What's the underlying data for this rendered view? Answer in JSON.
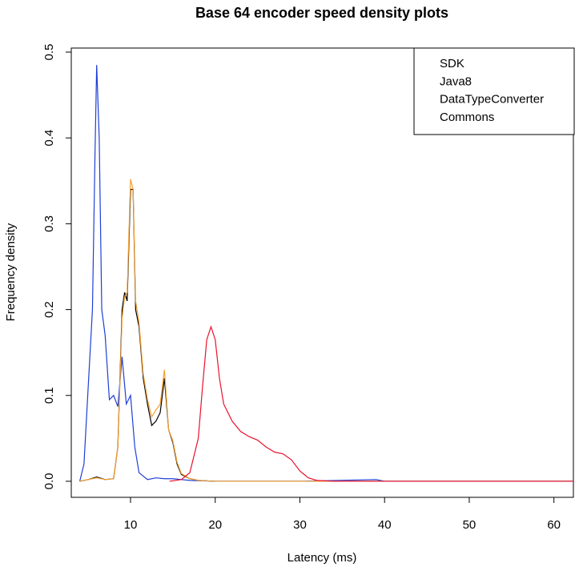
{
  "chart_data": {
    "type": "line",
    "title": "Base 64 encoder speed density plots",
    "xlabel": "Latency (ms)",
    "ylabel": "Frequency density",
    "xlim": [
      3,
      62.3
    ],
    "ylim": [
      -0.0187,
      0.5047
    ],
    "xticks": [
      10,
      20,
      30,
      40,
      50,
      60
    ],
    "yticks": [
      {
        "value": 0,
        "label": "0.0"
      },
      0.1,
      0.2,
      0.3,
      0.4,
      0.5
    ],
    "legend": "topright",
    "series": [
      {
        "name": "SDK",
        "color": "#000000",
        "x": [
          4,
          5,
          6,
          7,
          8,
          8.5,
          9,
          9.3,
          9.6,
          10,
          10.3,
          10.6,
          11,
          11.5,
          12,
          12.5,
          13,
          13.5,
          14,
          14.5,
          15,
          15.5,
          16,
          17,
          18,
          20,
          62.3
        ],
        "values": [
          0,
          0.002,
          0.005,
          0.002,
          0.003,
          0.04,
          0.2,
          0.22,
          0.21,
          0.34,
          0.34,
          0.2,
          0.18,
          0.12,
          0.09,
          0.065,
          0.07,
          0.08,
          0.12,
          0.06,
          0.045,
          0.02,
          0.008,
          0.003,
          0.001,
          0,
          0
        ]
      },
      {
        "name": "Java8",
        "color": "#1f3fd6",
        "x": [
          4,
          4.5,
          5,
          5.5,
          5.8,
          6,
          6.3,
          6.6,
          7,
          7.5,
          8,
          8.5,
          9,
          9.5,
          10,
          10.5,
          11,
          12,
          13,
          14,
          15,
          16,
          17,
          20,
          30,
          39,
          40,
          62.3
        ],
        "values": [
          0,
          0.02,
          0.11,
          0.2,
          0.38,
          0.485,
          0.4,
          0.2,
          0.17,
          0.095,
          0.1,
          0.087,
          0.145,
          0.09,
          0.1,
          0.04,
          0.01,
          0.002,
          0.004,
          0.003,
          0.003,
          0.002,
          0.001,
          0,
          0,
          0.002,
          0,
          0
        ]
      },
      {
        "name": "DataTypeConverter",
        "color": "#f5a030",
        "x": [
          4,
          5,
          6,
          7,
          8,
          8.5,
          9,
          9.3,
          9.6,
          10,
          10.3,
          10.6,
          11,
          11.5,
          12,
          12.5,
          13,
          13.5,
          14,
          14.5,
          15,
          15.5,
          16,
          17,
          18,
          20,
          62.3
        ],
        "values": [
          0,
          0.002,
          0.004,
          0.002,
          0.003,
          0.04,
          0.19,
          0.215,
          0.22,
          0.352,
          0.34,
          0.21,
          0.185,
          0.125,
          0.095,
          0.075,
          0.083,
          0.09,
          0.13,
          0.06,
          0.047,
          0.022,
          0.009,
          0.003,
          0.001,
          0,
          0
        ]
      },
      {
        "name": "Commons",
        "color": "#e8112d",
        "x": [
          14.6,
          16,
          17,
          18,
          18.5,
          19,
          19.5,
          20,
          20.5,
          21,
          22,
          23,
          24,
          25,
          26,
          27,
          28,
          29,
          30,
          31,
          32,
          34,
          62.3
        ],
        "values": [
          0,
          0.002,
          0.01,
          0.05,
          0.11,
          0.165,
          0.18,
          0.165,
          0.12,
          0.09,
          0.07,
          0.058,
          0.052,
          0.048,
          0.04,
          0.034,
          0.032,
          0.025,
          0.012,
          0.004,
          0.001,
          0,
          0
        ]
      }
    ]
  }
}
